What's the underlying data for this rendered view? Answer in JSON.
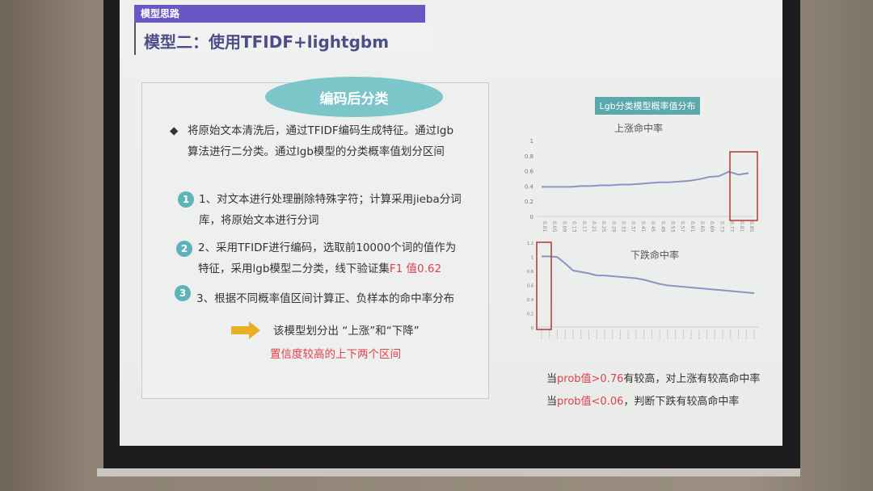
{
  "slide": {
    "section": "模型思路",
    "title": "模型二：使用TFIDF+lightgbm",
    "pill": "编码后分类",
    "bullet": [
      "将原始文本清洗后，通过TFIDF编码生成特征。通过lgb",
      "算法进行二分类。通过lgb模型的分类概率值划分区间"
    ],
    "steps": [
      {
        "num": "1",
        "lines": [
          "1、对文本进行处理删除特殊字符；计算采用jieba分词",
          "库，将原始文本进行分词"
        ]
      },
      {
        "num": "2",
        "lines": [
          "2、采用TFIDF进行编码，选取前10000个词的值作为",
          "特征，采用lgb模型二分类，线下验证集"
        ],
        "highlight": "F1 值0.62"
      },
      {
        "num": "3",
        "lines": [
          "3、根据不同概率值区间计算正、负样本的命中率分布"
        ]
      }
    ],
    "conclusion": "该模型划分出 “上涨”和“下降”",
    "conclusion_red": "置信度较高的上下两个区间",
    "chart_panel_title": "Lgb分类模型概率值分布",
    "footer": [
      {
        "a": "当",
        "b": "prob值>0.76",
        "c": "有较高，对上涨有较高命中率"
      },
      {
        "a": "当",
        "b": "prob值<0.06",
        "c": "，判断下跌有较高命中率"
      }
    ],
    "colors": {
      "header": "#6a57c4",
      "accent": "#5cb3b8",
      "highlight": "#e0404a",
      "line": "#8a94c4",
      "arrow": "#e8b020"
    }
  },
  "chart_data": [
    {
      "type": "line",
      "title": "上涨命中率",
      "ylim": [
        0,
        1
      ],
      "yticks": [
        "0",
        "0.2",
        "0.4",
        "0.6",
        "0.8",
        "1"
      ],
      "x": [
        "0.01",
        "0.05",
        "0.09",
        "0.13",
        "0.17",
        "0.21",
        "0.25",
        "0.29",
        "0.33",
        "0.37",
        "0.41",
        "0.45",
        "0.49",
        "0.53",
        "0.57",
        "0.61",
        "0.65",
        "0.69",
        "0.73",
        "0.77",
        "0.81",
        "0.85"
      ],
      "values": [
        0.39,
        0.39,
        0.39,
        0.39,
        0.4,
        0.4,
        0.41,
        0.41,
        0.42,
        0.42,
        0.43,
        0.44,
        0.45,
        0.45,
        0.46,
        0.47,
        0.49,
        0.52,
        0.53,
        0.59,
        0.55,
        0.57
      ],
      "highlight": "0.77-0.85"
    },
    {
      "type": "line",
      "title": "下跌命中率",
      "ylim": [
        0,
        1.2
      ],
      "yticks": [
        "0",
        "0.2",
        "0.4",
        "0.6",
        "0.8",
        "1",
        "1.2"
      ],
      "values": [
        1.0,
        1.0,
        0.99,
        0.9,
        0.8,
        0.78,
        0.76,
        0.73,
        0.73,
        0.72,
        0.71,
        0.7,
        0.69,
        0.67,
        0.64,
        0.61,
        0.59,
        0.58,
        0.57,
        0.56,
        0.55,
        0.54,
        0.53,
        0.52,
        0.51,
        0.5,
        0.49,
        0.48
      ],
      "highlight": "first two bins"
    }
  ]
}
